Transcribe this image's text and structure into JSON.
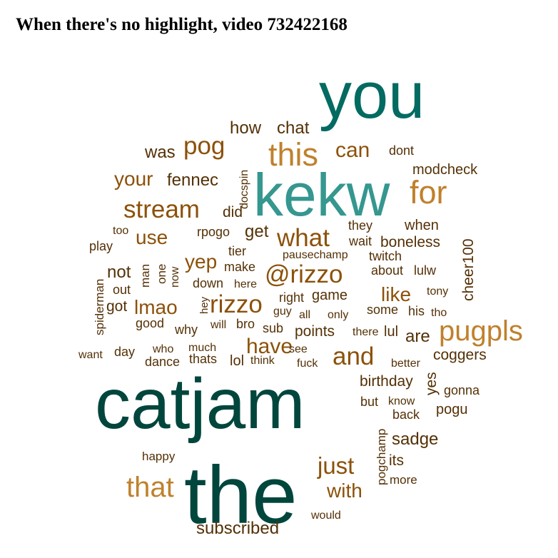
{
  "chart_data": {
    "type": "wordcloud",
    "title": "When there's no highlight, video 732422168",
    "palette": {
      "dark_green": "#01463c",
      "teal": "#036b61",
      "light_teal": "#35978f",
      "tan": "#bf812d",
      "brown": "#8c5109",
      "dark_brown": "#543005"
    },
    "words": [
      {
        "text": "you",
        "color": "#036b61",
        "weight": 100
      },
      {
        "text": "kekw",
        "color": "#35978f",
        "weight": 88
      },
      {
        "text": "catjam",
        "color": "#01463c",
        "weight": 100
      },
      {
        "text": "the",
        "color": "#01463c",
        "weight": 100
      },
      {
        "text": "this",
        "color": "#bf812d",
        "weight": 60
      },
      {
        "text": "for",
        "color": "#bf812d",
        "weight": 60
      },
      {
        "text": "pugpls",
        "color": "#bf812d",
        "weight": 55
      },
      {
        "text": "that",
        "color": "#bf812d",
        "weight": 55
      },
      {
        "text": "stream",
        "color": "#8c5109",
        "weight": 50
      },
      {
        "text": "what",
        "color": "#8c5109",
        "weight": 50
      },
      {
        "text": "@rizzo",
        "color": "#8c5109",
        "weight": 50
      },
      {
        "text": "rizzo",
        "color": "#8c5109",
        "weight": 50
      },
      {
        "text": "and",
        "color": "#8c5109",
        "weight": 50
      },
      {
        "text": "pog",
        "color": "#8c5109",
        "weight": 45
      },
      {
        "text": "can",
        "color": "#8c5109",
        "weight": 42
      },
      {
        "text": "have",
        "color": "#8c5109",
        "weight": 42
      },
      {
        "text": "just",
        "color": "#8c5109",
        "weight": 42
      },
      {
        "text": "your",
        "color": "#8c5109",
        "weight": 38
      },
      {
        "text": "use",
        "color": "#8c5109",
        "weight": 38
      },
      {
        "text": "yep",
        "color": "#8c5109",
        "weight": 36
      },
      {
        "text": "lmao",
        "color": "#8c5109",
        "weight": 36
      },
      {
        "text": "like",
        "color": "#8c5109",
        "weight": 36
      },
      {
        "text": "with",
        "color": "#8c5109",
        "weight": 36
      },
      {
        "text": "was",
        "color": "#543005",
        "weight": 32
      },
      {
        "text": "how",
        "color": "#543005",
        "weight": 30
      },
      {
        "text": "chat",
        "color": "#543005",
        "weight": 30
      },
      {
        "text": "fennec",
        "color": "#543005",
        "weight": 30
      },
      {
        "text": "get",
        "color": "#543005",
        "weight": 30
      },
      {
        "text": "not",
        "color": "#543005",
        "weight": 30
      },
      {
        "text": "are",
        "color": "#543005",
        "weight": 30
      },
      {
        "text": "sadge",
        "color": "#543005",
        "weight": 30
      },
      {
        "text": "subscribed",
        "color": "#543005",
        "weight": 30
      },
      {
        "text": "boneless",
        "color": "#543005",
        "weight": 28
      },
      {
        "text": "cheer100",
        "color": "#543005",
        "weight": 28
      },
      {
        "text": "did",
        "color": "#543005",
        "weight": 26
      },
      {
        "text": "got",
        "color": "#543005",
        "weight": 26
      },
      {
        "text": "birthday",
        "color": "#543005",
        "weight": 26
      },
      {
        "text": "coggers",
        "color": "#543005",
        "weight": 26
      },
      {
        "text": "points",
        "color": "#543005",
        "weight": 26
      },
      {
        "text": "yes",
        "color": "#543005",
        "weight": 26
      },
      {
        "text": "its",
        "color": "#543005",
        "weight": 26
      },
      {
        "text": "modcheck",
        "color": "#543005",
        "weight": 24
      },
      {
        "text": "dont",
        "color": "#543005",
        "weight": 22
      },
      {
        "text": "docspin",
        "color": "#543005",
        "weight": 20
      },
      {
        "text": "rpogo",
        "color": "#543005",
        "weight": 22
      },
      {
        "text": "they",
        "color": "#543005",
        "weight": 22
      },
      {
        "text": "when",
        "color": "#543005",
        "weight": 24
      },
      {
        "text": "too",
        "color": "#543005",
        "weight": 20
      },
      {
        "text": "play",
        "color": "#543005",
        "weight": 22
      },
      {
        "text": "tier",
        "color": "#543005",
        "weight": 22
      },
      {
        "text": "wait",
        "color": "#543005",
        "weight": 22
      },
      {
        "text": "pausechamp",
        "color": "#543005",
        "weight": 21
      },
      {
        "text": "twitch",
        "color": "#543005",
        "weight": 22
      },
      {
        "text": "man",
        "color": "#543005",
        "weight": 21
      },
      {
        "text": "one",
        "color": "#543005",
        "weight": 21
      },
      {
        "text": "now",
        "color": "#543005",
        "weight": 20
      },
      {
        "text": "make",
        "color": "#543005",
        "weight": 22
      },
      {
        "text": "about",
        "color": "#543005",
        "weight": 22
      },
      {
        "text": "lulw",
        "color": "#543005",
        "weight": 22
      },
      {
        "text": "spiderman",
        "color": "#543005",
        "weight": 21
      },
      {
        "text": "out",
        "color": "#543005",
        "weight": 24
      },
      {
        "text": "down",
        "color": "#543005",
        "weight": 22
      },
      {
        "text": "here",
        "color": "#543005",
        "weight": 22
      },
      {
        "text": "right",
        "color": "#543005",
        "weight": 22
      },
      {
        "text": "game",
        "color": "#543005",
        "weight": 24
      },
      {
        "text": "tony",
        "color": "#543005",
        "weight": 20
      },
      {
        "text": "hey",
        "color": "#543005",
        "weight": 20
      },
      {
        "text": "some",
        "color": "#543005",
        "weight": 22
      },
      {
        "text": "his",
        "color": "#543005",
        "weight": 22
      },
      {
        "text": "tho",
        "color": "#543005",
        "weight": 20
      },
      {
        "text": "guy",
        "color": "#543005",
        "weight": 20
      },
      {
        "text": "all",
        "color": "#543005",
        "weight": 20
      },
      {
        "text": "only",
        "color": "#543005",
        "weight": 20
      },
      {
        "text": "good",
        "color": "#543005",
        "weight": 22
      },
      {
        "text": "why",
        "color": "#543005",
        "weight": 22
      },
      {
        "text": "will",
        "color": "#543005",
        "weight": 20
      },
      {
        "text": "bro",
        "color": "#543005",
        "weight": 22
      },
      {
        "text": "sub",
        "color": "#543005",
        "weight": 22
      },
      {
        "text": "there",
        "color": "#543005",
        "weight": 20
      },
      {
        "text": "lul",
        "color": "#543005",
        "weight": 24
      },
      {
        "text": "who",
        "color": "#543005",
        "weight": 20
      },
      {
        "text": "much",
        "color": "#543005",
        "weight": 20
      },
      {
        "text": "want",
        "color": "#543005",
        "weight": 20
      },
      {
        "text": "day",
        "color": "#543005",
        "weight": 22
      },
      {
        "text": "dance",
        "color": "#543005",
        "weight": 22
      },
      {
        "text": "thats",
        "color": "#543005",
        "weight": 22
      },
      {
        "text": "lol",
        "color": "#543005",
        "weight": 24
      },
      {
        "text": "think",
        "color": "#543005",
        "weight": 20
      },
      {
        "text": "see",
        "color": "#543005",
        "weight": 20
      },
      {
        "text": "fuck",
        "color": "#543005",
        "weight": 20
      },
      {
        "text": "better",
        "color": "#543005",
        "weight": 20
      },
      {
        "text": "but",
        "color": "#543005",
        "weight": 22
      },
      {
        "text": "know",
        "color": "#543005",
        "weight": 20
      },
      {
        "text": "gonna",
        "color": "#543005",
        "weight": 22
      },
      {
        "text": "back",
        "color": "#543005",
        "weight": 22
      },
      {
        "text": "pogu",
        "color": "#543005",
        "weight": 24
      },
      {
        "text": "pogchamp",
        "color": "#543005",
        "weight": 21
      },
      {
        "text": "more",
        "color": "#543005",
        "weight": 21
      },
      {
        "text": "happy",
        "color": "#543005",
        "weight": 21
      },
      {
        "text": "would",
        "color": "#543005",
        "weight": 20
      }
    ]
  }
}
